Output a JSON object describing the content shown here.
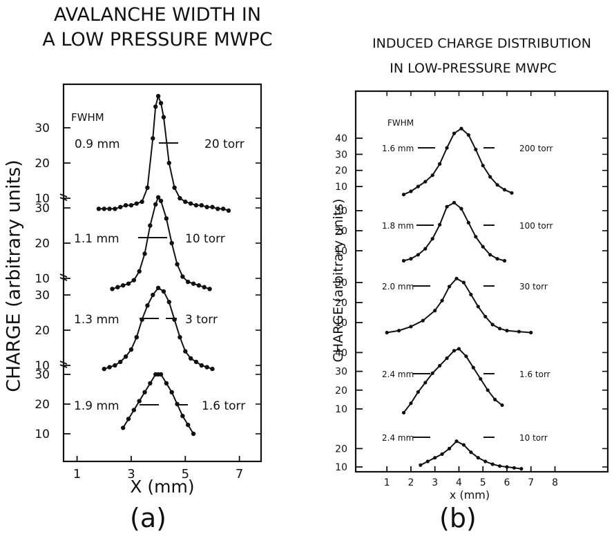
{
  "panel_a": {
    "title_line1": "AVALANCHE WIDTH IN",
    "title_line2": "A LOW PRESSURE MWPC",
    "panel_label": "(a)",
    "xlabel": "X (mm)",
    "ylabel": "CHARGE  (arbitrary units)",
    "fwhm_label": "FWHM"
  },
  "panel_b": {
    "title_line1": "INDUCED CHARGE DISTRIBUTION",
    "title_line2": "IN LOW-PRESSURE MWPC",
    "panel_label": "(b)",
    "xlabel": "x (mm)",
    "ylabel": "CHARGE (arbitrary units)",
    "fwhm_label": "FWHM"
  },
  "chart_data": [
    {
      "type": "line",
      "panel": "a",
      "title": "AVALANCHE WIDTH IN A LOW PRESSURE MWPC",
      "xlabel": "X (mm)",
      "ylabel": "CHARGE (arbitrary units)",
      "xlim": [
        0.5,
        7.8
      ],
      "xticks": [
        1,
        3,
        5,
        7
      ],
      "stacked_offsets": true,
      "series": [
        {
          "name": "20 torr",
          "fwhm": "0.9 mm",
          "y_ticks": [
            10,
            20,
            30
          ],
          "x": [
            1.8,
            2.0,
            2.2,
            2.4,
            2.6,
            2.8,
            3.0,
            3.2,
            3.4,
            3.6,
            3.8,
            3.9,
            4.0,
            4.1,
            4.2,
            4.4,
            4.6,
            4.8,
            5.0,
            5.2,
            5.4,
            5.6,
            5.8,
            6.0,
            6.2,
            6.4,
            6.6
          ],
          "y": [
            7,
            7,
            7,
            7,
            7.5,
            8,
            8,
            8.5,
            9,
            13,
            27,
            36,
            39,
            37,
            33,
            20,
            13,
            10,
            9,
            8.5,
            8,
            8,
            7.5,
            7.5,
            7,
            7,
            6.5
          ]
        },
        {
          "name": "10 torr",
          "fwhm": "1.1 mm",
          "y_ticks": [
            10,
            20,
            30
          ],
          "x": [
            2.3,
            2.5,
            2.7,
            2.9,
            3.1,
            3.3,
            3.5,
            3.7,
            3.9,
            4.0,
            4.1,
            4.3,
            4.5,
            4.7,
            4.9,
            5.1,
            5.3,
            5.5,
            5.7,
            5.9
          ],
          "y": [
            7,
            7.5,
            8,
            8.5,
            9.5,
            12,
            17,
            25,
            31,
            33,
            32,
            27,
            20,
            14,
            10.5,
            9,
            8.5,
            8,
            7.5,
            7
          ]
        },
        {
          "name": "3 torr",
          "fwhm": "1.3 mm",
          "y_ticks": [
            10,
            20,
            30
          ],
          "x": [
            2.0,
            2.2,
            2.4,
            2.6,
            2.8,
            3.0,
            3.2,
            3.4,
            3.6,
            3.8,
            4.0,
            4.2,
            4.4,
            4.6,
            4.8,
            5.0,
            5.2,
            5.4,
            5.6,
            5.8,
            6.0
          ],
          "y": [
            9,
            9.5,
            10,
            11,
            12.5,
            14.5,
            18,
            23,
            27,
            30,
            32,
            31,
            28,
            23,
            18,
            14,
            12,
            11,
            10,
            9.5,
            9
          ]
        },
        {
          "name": "1.6 torr",
          "fwhm": "1.9 mm",
          "y_ticks": [
            10,
            20,
            30
          ],
          "x": [
            2.7,
            2.9,
            3.1,
            3.3,
            3.5,
            3.7,
            3.9,
            4.0,
            4.1,
            4.3,
            4.5,
            4.7,
            4.9,
            5.1,
            5.3
          ],
          "y": [
            12,
            15,
            18,
            21,
            24,
            27,
            30,
            30,
            30,
            27,
            24,
            20,
            16,
            13,
            10
          ]
        }
      ]
    },
    {
      "type": "line",
      "panel": "b",
      "title": "INDUCED CHARGE DISTRIBUTION IN LOW-PRESSURE MWPC",
      "xlabel": "x (mm)",
      "ylabel": "CHARGE (arbitrary units)",
      "xlim": [
        -0.3,
        10.2
      ],
      "xticks": [
        1,
        2,
        3,
        4,
        5,
        6,
        7,
        8
      ],
      "stacked_offsets": true,
      "series": [
        {
          "name": "200 torr",
          "fwhm": "1.6 mm",
          "y_ticks": [
            10,
            20,
            30,
            40
          ],
          "x": [
            1.7,
            2.0,
            2.3,
            2.6,
            2.9,
            3.2,
            3.5,
            3.8,
            4.1,
            4.4,
            4.7,
            5.0,
            5.3,
            5.6,
            5.9,
            6.2
          ],
          "y": [
            5,
            7,
            10,
            13,
            17,
            24,
            34,
            43,
            46,
            42,
            33,
            23,
            16,
            11,
            8,
            6
          ]
        },
        {
          "name": "100 torr",
          "fwhm": "1.8 mm",
          "y_ticks": [
            10,
            20,
            30
          ],
          "x": [
            1.7,
            2.0,
            2.3,
            2.6,
            2.9,
            3.2,
            3.5,
            3.8,
            4.1,
            4.4,
            4.7,
            5.0,
            5.3,
            5.6,
            5.9
          ],
          "y": [
            5,
            6,
            8,
            11,
            16,
            23,
            32,
            34,
            31,
            24,
            17,
            12,
            8,
            6,
            5
          ]
        },
        {
          "name": "30 torr",
          "fwhm": "2.0 mm",
          "y_ticks": [
            10,
            20,
            30
          ],
          "x": [
            1.0,
            1.5,
            2.0,
            2.5,
            3.0,
            3.3,
            3.6,
            3.9,
            4.2,
            4.5,
            4.8,
            5.1,
            5.4,
            5.7,
            6.0,
            6.5,
            7.0
          ],
          "y": [
            5,
            6,
            8,
            11,
            16,
            21,
            28,
            32,
            30,
            24,
            18,
            13,
            9,
            7,
            6,
            5.5,
            5
          ]
        },
        {
          "name": "1.6 torr",
          "fwhm": "2.4 mm",
          "y_ticks": [
            10,
            20,
            30,
            40
          ],
          "x": [
            1.7,
            2.0,
            2.3,
            2.6,
            2.9,
            3.2,
            3.5,
            3.8,
            4.0,
            4.3,
            4.6,
            4.9,
            5.2,
            5.5,
            5.8
          ],
          "y": [
            8,
            13,
            19,
            24,
            29,
            33,
            37,
            41,
            42,
            38,
            32,
            26,
            20,
            15,
            12
          ]
        },
        {
          "name": "10 torr",
          "fwhm": "2.4 mm",
          "y_ticks": [
            10,
            20
          ],
          "x": [
            2.4,
            2.7,
            3.0,
            3.3,
            3.6,
            3.9,
            4.2,
            4.5,
            4.8,
            5.1,
            5.4,
            5.7,
            6.0,
            6.3,
            6.6
          ],
          "y": [
            11,
            13,
            15,
            17,
            20,
            24,
            22,
            18,
            15,
            13,
            11.5,
            10.5,
            10,
            9.5,
            9
          ]
        }
      ]
    }
  ]
}
